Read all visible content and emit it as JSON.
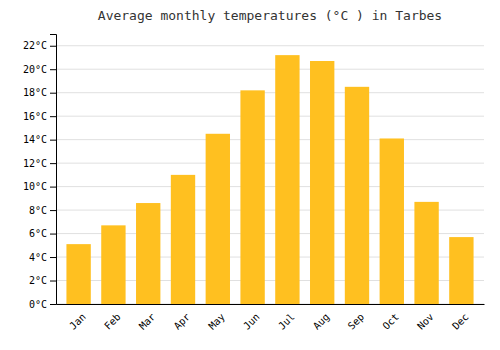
{
  "chart_data": {
    "type": "bar",
    "title": "Average monthly temperatures (°C ) in Tarbes",
    "categories": [
      "Jan",
      "Feb",
      "Mar",
      "Apr",
      "May",
      "Jun",
      "Jul",
      "Aug",
      "Sep",
      "Oct",
      "Nov",
      "Dec"
    ],
    "values": [
      5.1,
      6.7,
      8.6,
      11.0,
      14.5,
      18.2,
      21.2,
      20.7,
      18.5,
      14.1,
      8.7,
      5.7
    ],
    "color": "#FFC020",
    "ylim": [
      0,
      23
    ],
    "yticks": [
      {
        "value": 0,
        "label": "0°C"
      },
      {
        "value": 2,
        "label": "2°C"
      },
      {
        "value": 4,
        "label": "4°C"
      },
      {
        "value": 6,
        "label": "6°C"
      },
      {
        "value": 8,
        "label": "8°C"
      },
      {
        "value": 10,
        "label": "10°C"
      },
      {
        "value": 12,
        "label": "12°C"
      },
      {
        "value": 14,
        "label": "14°C"
      },
      {
        "value": 16,
        "label": "16°C"
      },
      {
        "value": 18,
        "label": "18°C"
      },
      {
        "value": 20,
        "label": "20°C"
      },
      {
        "value": 22,
        "label": "22°C"
      }
    ],
    "grid": true
  }
}
